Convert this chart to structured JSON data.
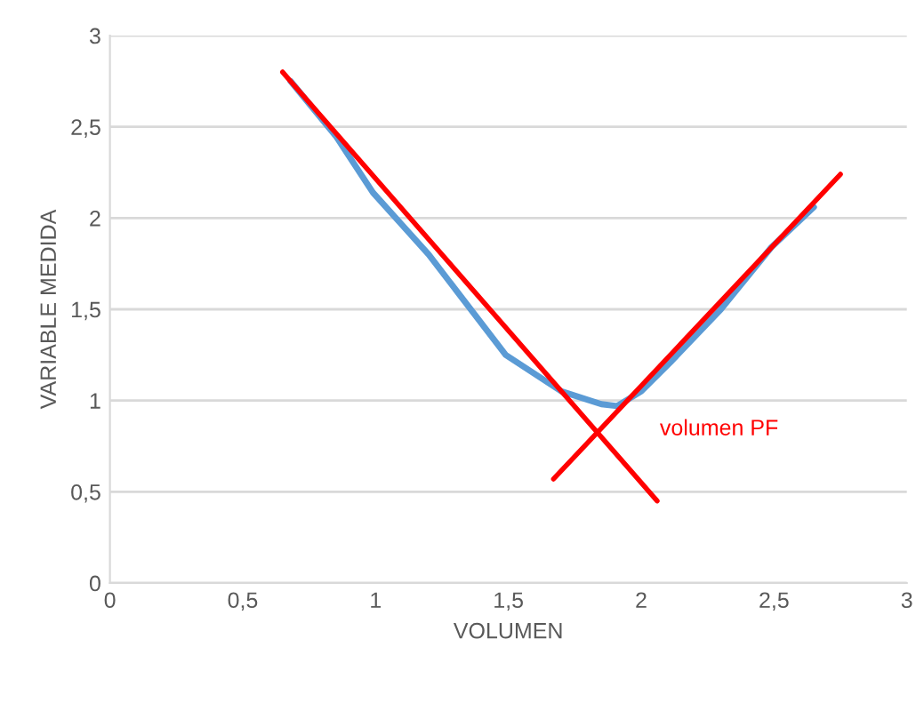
{
  "chart_data": {
    "type": "line",
    "xlabel": "VOLUMEN",
    "ylabel": "VARIABLE MEDIDA",
    "xlim": [
      0,
      3
    ],
    "ylim": [
      0,
      3
    ],
    "xticks": [
      0,
      {
        "value": 0.5,
        "label": "0,5"
      },
      1,
      {
        "value": 1.5,
        "label": "1,5"
      },
      2,
      {
        "value": 2.5,
        "label": "2,5"
      },
      3
    ],
    "yticks": [
      0,
      {
        "value": 0.5,
        "label": "0,5"
      },
      1,
      {
        "value": 1.5,
        "label": "1,5"
      },
      2,
      {
        "value": 2.5,
        "label": "2,5"
      },
      3
    ],
    "grid": "y",
    "legend": false,
    "marker": "none",
    "line_style": "solid",
    "series": [
      {
        "color": "#5b9bd5",
        "x": [
          0.68,
          0.85,
          0.99,
          1.2,
          1.49,
          1.7,
          1.85,
          1.91,
          2.0,
          2.11,
          2.3,
          2.49,
          2.65
        ],
        "values": [
          2.75,
          2.45,
          2.14,
          1.8,
          1.25,
          1.05,
          0.98,
          0.97,
          1.05,
          1.21,
          1.5,
          1.84,
          2.06
        ]
      },
      {
        "color": "#ff0000",
        "x": [
          0.65,
          2.06
        ],
        "values": [
          2.8,
          0.45
        ]
      },
      {
        "color": "#ff0000",
        "x": [
          1.67,
          2.75
        ],
        "values": [
          0.57,
          2.24
        ]
      }
    ],
    "annotations": [
      "volumen PF"
    ]
  }
}
